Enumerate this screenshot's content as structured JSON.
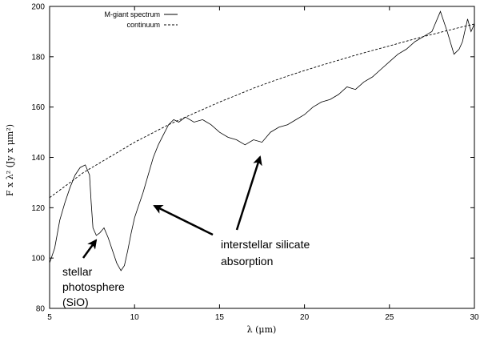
{
  "chart_data": {
    "type": "line",
    "xlabel": "λ (μm)",
    "ylabel": "F x λ² (Jy x μm²)",
    "xlim": [
      5,
      30
    ],
    "ylim": [
      80,
      200
    ],
    "xticks": [
      "5",
      "10",
      "15",
      "20",
      "25",
      "30"
    ],
    "yticks": [
      "80",
      "100",
      "120",
      "140",
      "160",
      "180",
      "200"
    ],
    "grid": false,
    "legend": "top-left",
    "series": [
      {
        "name": "M-giant spectrum",
        "style": "solid",
        "x": [
          5.0,
          5.3,
          5.6,
          5.9,
          6.2,
          6.5,
          6.8,
          7.1,
          7.35,
          7.45,
          7.55,
          7.75,
          7.95,
          8.2,
          8.45,
          8.7,
          8.95,
          9.2,
          9.4,
          9.6,
          9.8,
          10.0,
          10.2,
          10.5,
          10.8,
          11.1,
          11.4,
          11.7,
          12.0,
          12.3,
          12.6,
          13.0,
          13.5,
          14.0,
          14.5,
          15.0,
          15.5,
          16.0,
          16.5,
          17.0,
          17.5,
          18.0,
          18.5,
          19.0,
          19.5,
          20.0,
          20.5,
          21.0,
          21.5,
          22.0,
          22.5,
          23.0,
          23.5,
          24.0,
          24.5,
          25.0,
          25.5,
          26.0,
          26.5,
          27.0,
          27.5,
          28.0,
          28.4,
          28.8,
          29.1,
          29.3,
          29.6,
          29.8,
          30.0
        ],
        "y": [
          98,
          104,
          115,
          122,
          128,
          133,
          136,
          137,
          133,
          122,
          112,
          109,
          110,
          112,
          108,
          103,
          98,
          95,
          97,
          103,
          110,
          116,
          120,
          126,
          133,
          140,
          145,
          149,
          153,
          155,
          154,
          156,
          154,
          155,
          153,
          150,
          148,
          147,
          145,
          147,
          146,
          150,
          152,
          153,
          155,
          157,
          160,
          162,
          163,
          165,
          168,
          167,
          170,
          172,
          175,
          178,
          181,
          183,
          186,
          188,
          190,
          198,
          190,
          181,
          183,
          186,
          195,
          190,
          193
        ]
      },
      {
        "name": "continuum",
        "style": "dashed",
        "x": [
          5,
          6,
          7,
          8,
          9,
          10,
          11,
          12,
          13,
          14,
          15,
          16,
          17,
          18,
          19,
          20,
          21,
          22,
          23,
          24,
          25,
          26,
          27,
          28,
          29,
          30
        ],
        "y": [
          124,
          129,
          134,
          138,
          142,
          146,
          149.5,
          153,
          156,
          159,
          162,
          164.7,
          167.5,
          170,
          172.3,
          174.5,
          176.6,
          178.6,
          180.6,
          182.5,
          184.3,
          186.2,
          188,
          189.7,
          191.4,
          193
        ]
      }
    ],
    "annotations": [
      {
        "lines": [
          "stellar",
          "photosphere",
          "(SiO)"
        ],
        "arrow_to": [
          7.9,
          110
        ]
      },
      {
        "lines": [
          "interstellar silicate",
          "absorption"
        ],
        "arrow_to": [
          [
            10.9,
            121
          ],
          [
            17.8,
            143
          ]
        ]
      }
    ]
  }
}
